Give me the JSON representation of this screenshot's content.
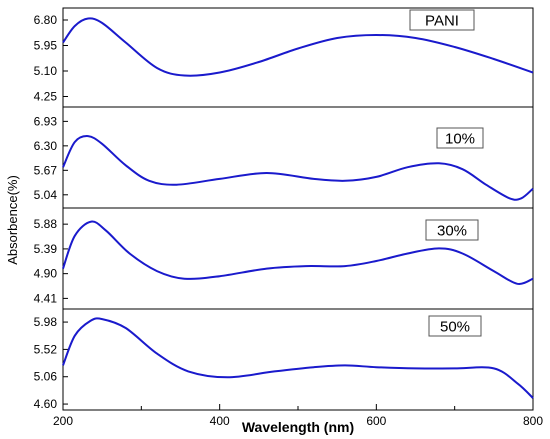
{
  "chart_data": {
    "type": "line",
    "xlabel": "Wavelength (nm)",
    "ylabel": "Absorbence(%)",
    "xlim": [
      200,
      800
    ],
    "xticks": [
      "200",
      "400",
      "600",
      "800"
    ],
    "line_color": "#1a1acc",
    "panels": [
      {
        "label": "PANI",
        "ylim": [
          3.9,
          7.2
        ],
        "yticks": [
          "4.25",
          "5.10",
          "5.95",
          "6.80"
        ],
        "x": [
          200,
          215,
          232,
          250,
          280,
          320,
          355,
          400,
          450,
          500,
          550,
          600,
          650,
          700,
          750,
          800
        ],
        "y": [
          6.05,
          6.6,
          6.85,
          6.7,
          6.05,
          5.2,
          4.95,
          5.05,
          5.4,
          5.85,
          6.2,
          6.3,
          6.2,
          5.9,
          5.5,
          5.05
        ]
      },
      {
        "label": "10%",
        "ylim": [
          4.7,
          7.3
        ],
        "yticks": [
          "5.04",
          "5.67",
          "6.30",
          "6.93"
        ],
        "x": [
          200,
          215,
          232,
          250,
          280,
          310,
          345,
          400,
          460,
          520,
          560,
          600,
          640,
          680,
          710,
          740,
          770,
          785,
          800
        ],
        "y": [
          5.75,
          6.4,
          6.55,
          6.35,
          5.8,
          5.4,
          5.3,
          5.45,
          5.6,
          5.45,
          5.4,
          5.5,
          5.75,
          5.85,
          5.7,
          5.3,
          4.95,
          4.95,
          5.2
        ]
      },
      {
        "label": "30%",
        "ylim": [
          4.2,
          6.2
        ],
        "yticks": [
          "4.41",
          "4.90",
          "5.39",
          "5.88"
        ],
        "x": [
          200,
          215,
          236,
          255,
          285,
          320,
          355,
          400,
          460,
          510,
          560,
          600,
          640,
          680,
          710,
          750,
          780,
          800
        ],
        "y": [
          5.0,
          5.65,
          5.93,
          5.75,
          5.3,
          4.95,
          4.8,
          4.85,
          5.0,
          5.05,
          5.05,
          5.15,
          5.3,
          5.4,
          5.3,
          4.95,
          4.7,
          4.8
        ]
      },
      {
        "label": "50%",
        "ylim": [
          4.5,
          6.2
        ],
        "yticks": [
          "4.60",
          "5.06",
          "5.52",
          "5.98"
        ],
        "x": [
          200,
          215,
          235,
          250,
          280,
          320,
          360,
          410,
          470,
          520,
          560,
          600,
          650,
          700,
          750,
          780,
          800
        ],
        "y": [
          5.25,
          5.75,
          6.0,
          6.03,
          5.88,
          5.45,
          5.15,
          5.05,
          5.15,
          5.22,
          5.25,
          5.22,
          5.2,
          5.2,
          5.2,
          4.95,
          4.7
        ]
      }
    ]
  }
}
